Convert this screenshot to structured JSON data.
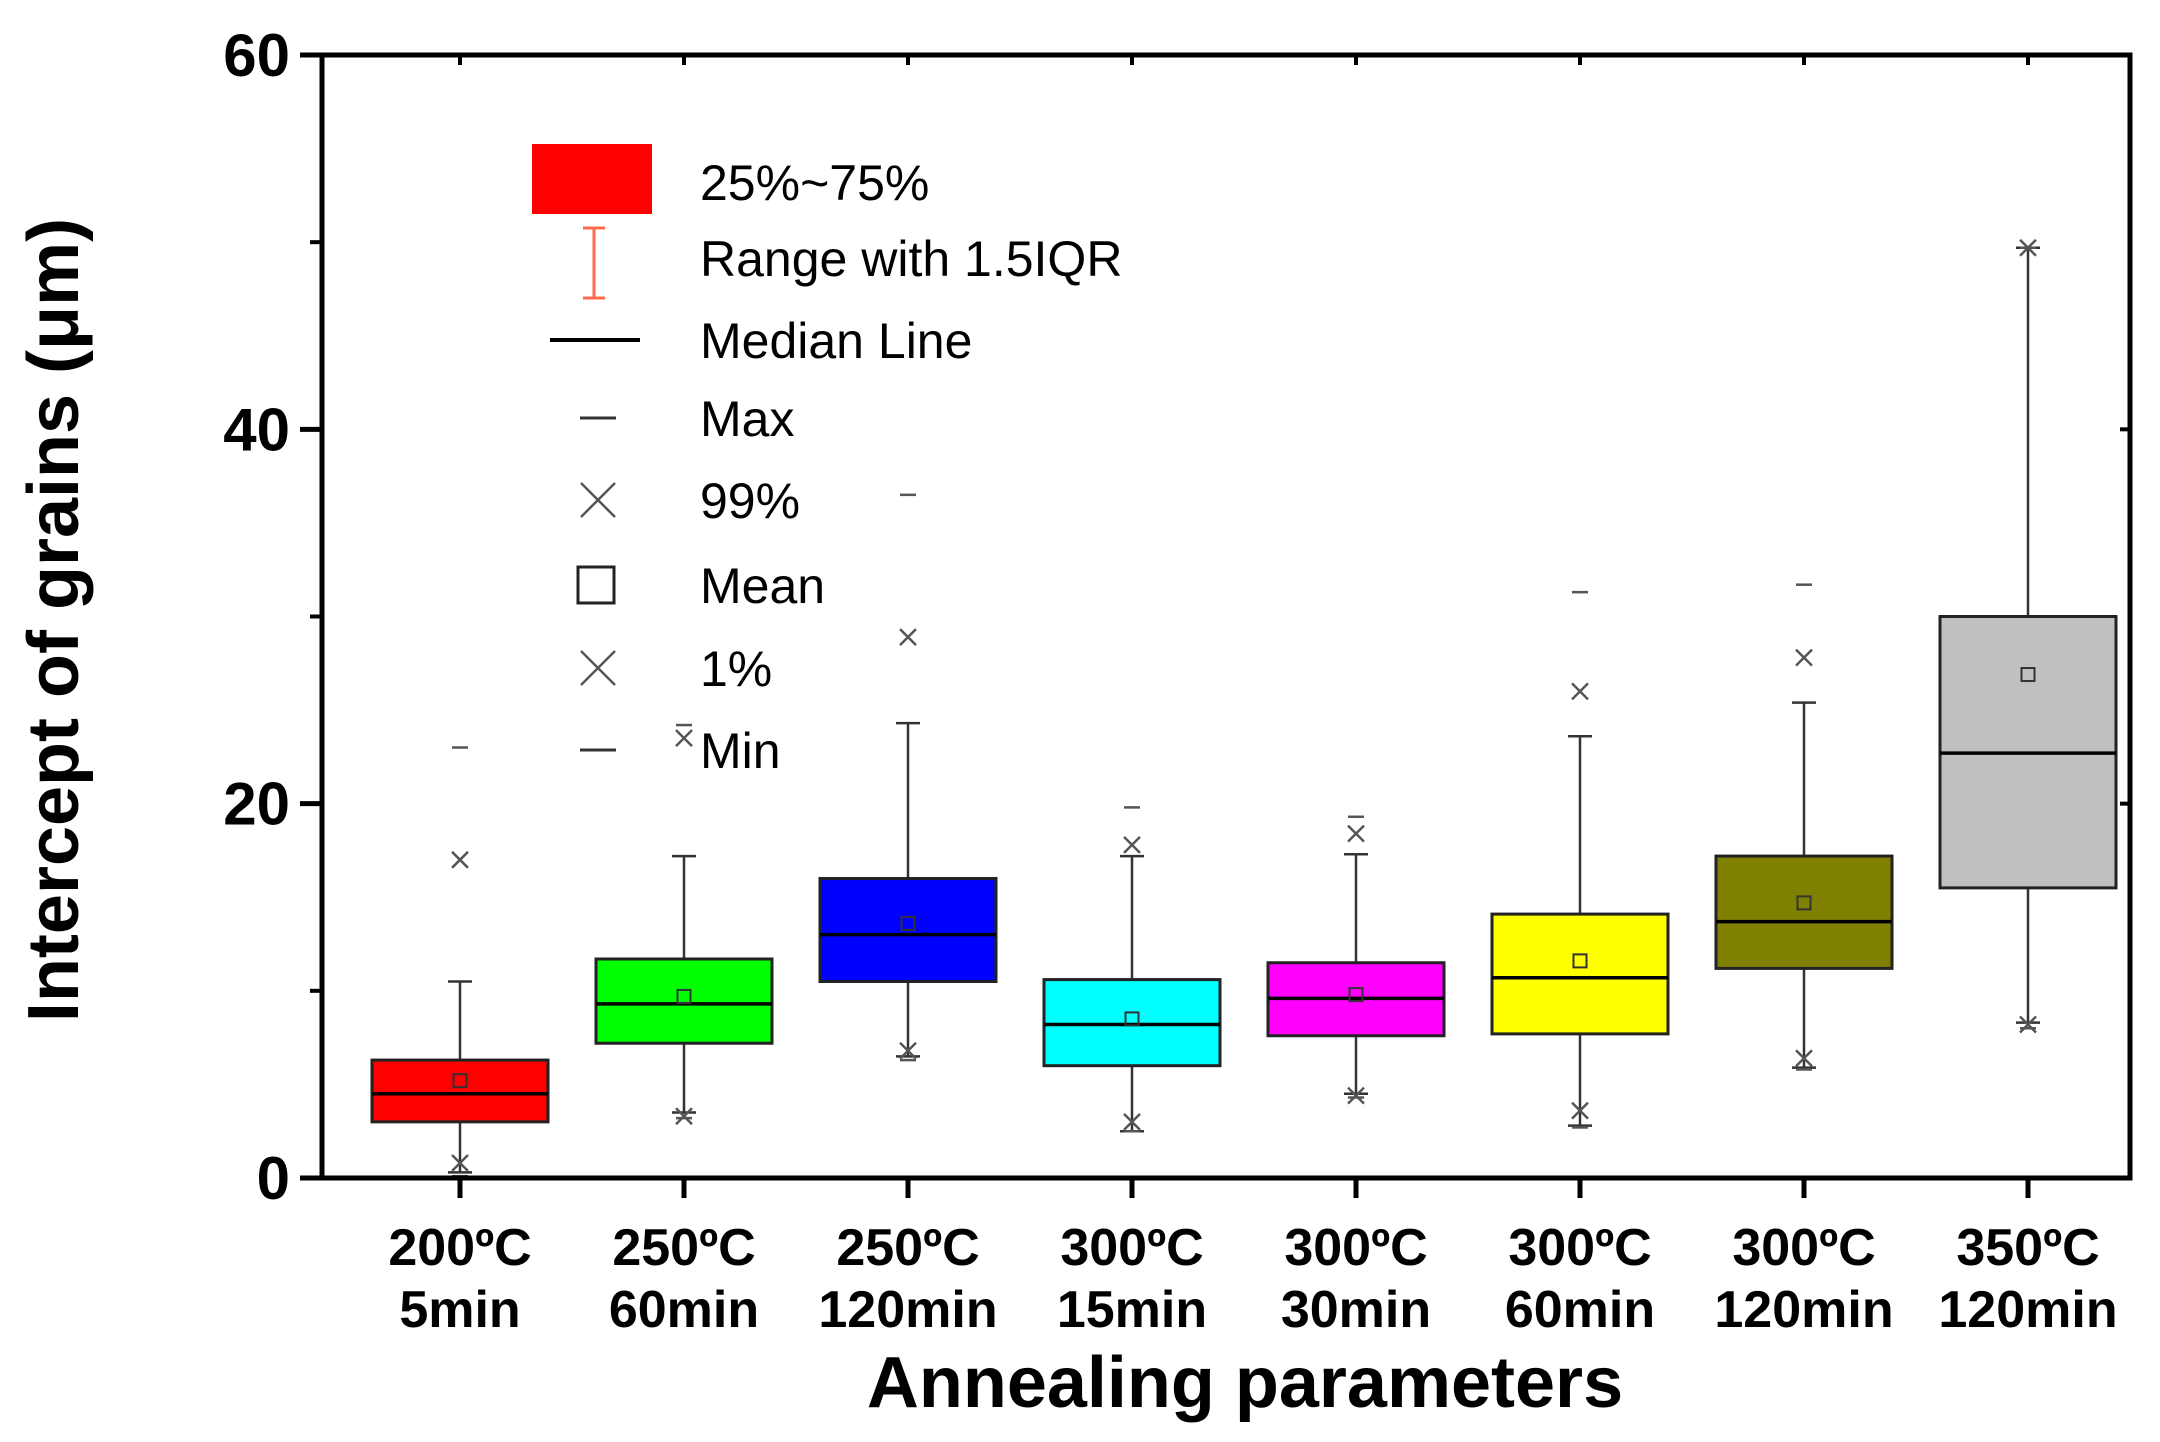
{
  "chart_data": {
    "type": "box",
    "title": "",
    "xlabel": "Annealing parameters",
    "ylabel": "Intercept of grains (μm)",
    "ylim": [
      0,
      60
    ],
    "yticks": [
      "0",
      "20",
      "40",
      "60"
    ],
    "categories": [
      {
        "line1": "200ºC",
        "line2": "5min"
      },
      {
        "line1": "250ºC",
        "line2": "60min"
      },
      {
        "line1": "250ºC",
        "line2": "120min"
      },
      {
        "line1": "300ºC",
        "line2": "15min"
      },
      {
        "line1": "300ºC",
        "line2": "30min"
      },
      {
        "line1": "300ºC",
        "line2": "60min"
      },
      {
        "line1": "300ºC",
        "line2": "120min"
      },
      {
        "line1": "350ºC",
        "line2": "120min"
      }
    ],
    "series": [
      {
        "name": "200ºC 5min",
        "color": "#ff0000",
        "q1": 3.0,
        "median": 4.5,
        "q3": 6.3,
        "whisker_low": 0.3,
        "whisker_high": 10.5,
        "mean": 5.2,
        "p1": 0.8,
        "p99": 17.0,
        "min": 0.1,
        "max": 23.0
      },
      {
        "name": "250ºC 60min",
        "color": "#00ff00",
        "q1": 7.2,
        "median": 9.3,
        "q3": 11.7,
        "whisker_low": 3.5,
        "whisker_high": 17.2,
        "mean": 9.7,
        "p1": 3.3,
        "p99": 23.5,
        "min": 3.2,
        "max": 24.2
      },
      {
        "name": "250ºC 120min",
        "color": "#0000ff",
        "q1": 10.5,
        "median": 13.0,
        "q3": 16.0,
        "whisker_low": 6.5,
        "whisker_high": 24.3,
        "mean": 13.6,
        "p1": 6.8,
        "p99": 28.9,
        "min": 6.3,
        "max": 36.5
      },
      {
        "name": "300ºC 15min",
        "color": "#00ffff",
        "q1": 6.0,
        "median": 8.2,
        "q3": 10.6,
        "whisker_low": 2.5,
        "whisker_high": 17.2,
        "mean": 8.5,
        "p1": 3.0,
        "p99": 17.8,
        "min": 2.5,
        "max": 19.8
      },
      {
        "name": "300ºC 30min",
        "color": "#ff00ff",
        "q1": 7.6,
        "median": 9.6,
        "q3": 11.5,
        "whisker_low": 4.5,
        "whisker_high": 17.3,
        "mean": 9.8,
        "p1": 4.4,
        "p99": 18.4,
        "min": 4.3,
        "max": 19.3
      },
      {
        "name": "300ºC 60min",
        "color": "#ffff00",
        "q1": 7.7,
        "median": 10.7,
        "q3": 14.1,
        "whisker_low": 2.8,
        "whisker_high": 23.6,
        "mean": 11.6,
        "p1": 3.6,
        "p99": 26.0,
        "min": 2.7,
        "max": 31.3
      },
      {
        "name": "300ºC 120min",
        "color": "#808000",
        "q1": 11.2,
        "median": 13.7,
        "q3": 17.2,
        "whisker_low": 5.9,
        "whisker_high": 25.4,
        "mean": 14.7,
        "p1": 6.4,
        "p99": 27.8,
        "min": 5.8,
        "max": 31.7
      },
      {
        "name": "350ºC 120min",
        "color": "#c0c0c0",
        "q1": 15.5,
        "median": 22.7,
        "q3": 30.0,
        "whisker_low": 8.3,
        "whisker_high": 49.7,
        "mean": 26.9,
        "p1": 8.2,
        "p99": 49.7,
        "min": 8.0,
        "max": 49.7
      }
    ],
    "legend": {
      "position": "top-left",
      "items": [
        {
          "symbol": "box",
          "label": "25%~75%"
        },
        {
          "symbol": "whisker",
          "label": "Range with 1.5IQR"
        },
        {
          "symbol": "median-line",
          "label": "Median Line"
        },
        {
          "symbol": "dash",
          "label": "Max"
        },
        {
          "symbol": "cross",
          "label": "99%"
        },
        {
          "symbol": "square",
          "label": "Mean"
        },
        {
          "symbol": "cross",
          "label": "1%"
        },
        {
          "symbol": "dash",
          "label": "Min"
        }
      ]
    }
  }
}
